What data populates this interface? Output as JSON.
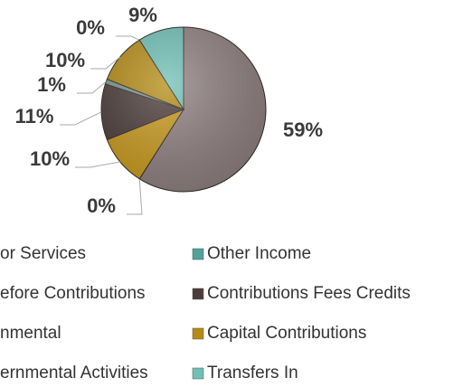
{
  "chart_data": {
    "type": "pie",
    "categories": [
      "or Services",
      "Other Income",
      "efore Contributions",
      "Contributions  Fees Credits",
      "nmental",
      "Capital Contributions",
      "ernmental Activities",
      "Transfers In"
    ],
    "values": [
      59,
      0,
      10,
      11,
      1,
      10,
      0,
      9
    ],
    "value_labels": [
      "59%",
      "0%",
      "10%",
      "11%",
      "1%",
      "10%",
      "0%",
      "9%"
    ],
    "colors": [
      "#8f8080",
      "#4fa39a",
      "#c99a1e",
      "#4a3c39",
      "#7d9593",
      "#b58b15",
      "#9a8a55",
      "#6fc0b6"
    ],
    "legend": "bottom"
  }
}
